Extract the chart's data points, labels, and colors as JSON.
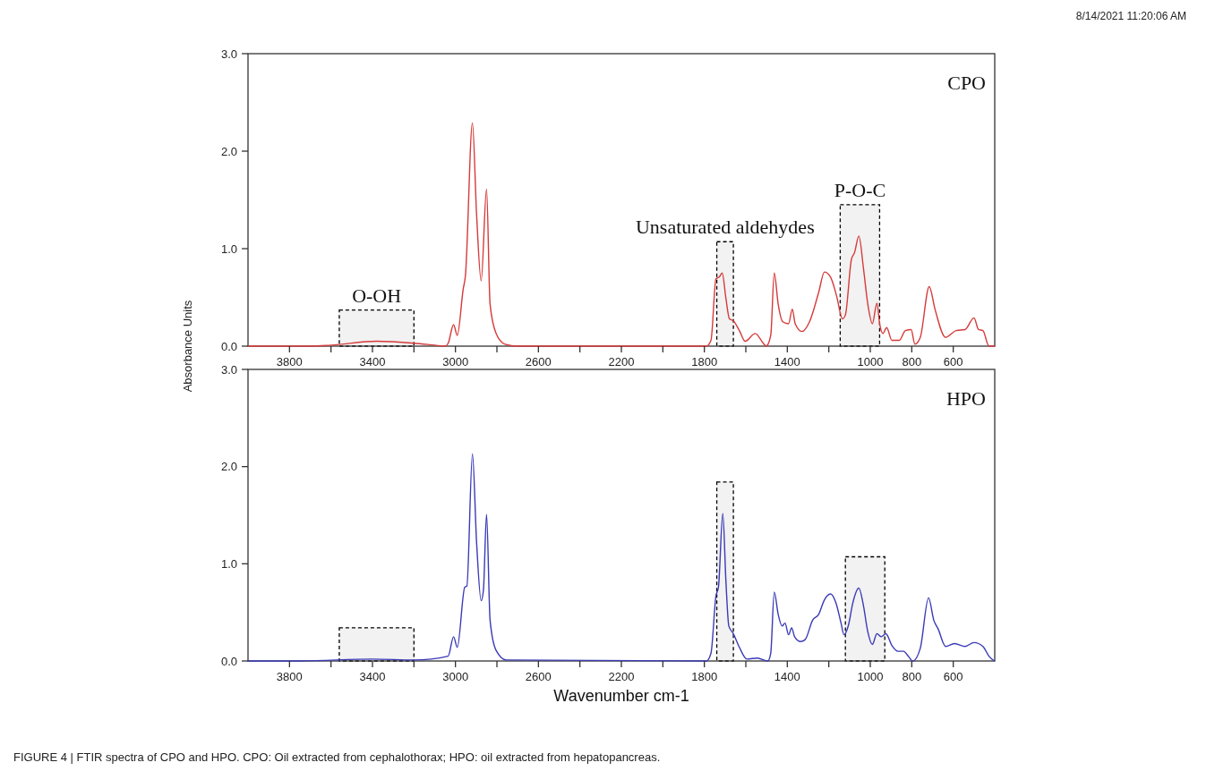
{
  "chart_data": [
    {
      "type": "line",
      "title": "CPO",
      "ylabel": "Absorbance Units",
      "annotations": [
        "8/14/2021 11:20:06 AM"
      ],
      "xlim": [
        4000,
        400
      ],
      "ylim": [
        0,
        3
      ],
      "xticks": [
        3800,
        {
          "value": 3600,
          "label": null
        },
        3400,
        {
          "value": 3200,
          "label": null
        },
        3000,
        {
          "value": 2800,
          "label": null
        },
        2600,
        {
          "value": 2400,
          "label": null
        },
        2200,
        {
          "value": 2000,
          "label": null
        },
        1800,
        {
          "value": 1600,
          "label": null
        },
        1400,
        {
          "value": 1200,
          "label": null
        },
        1000,
        800,
        600
      ],
      "yticks": [
        {
          "value": 0,
          "label": "0.0"
        },
        {
          "value": 1,
          "label": "1.0"
        },
        {
          "value": 2,
          "label": "2.0"
        },
        {
          "value": 3,
          "label": "3.0"
        }
      ],
      "grid": false,
      "bands": [
        {
          "axis": "x",
          "from": 3560,
          "to": 3200,
          "label": "O-OH",
          "color": "#000000"
        },
        {
          "axis": "x",
          "from": 1740,
          "to": 1660,
          "label": "Unsaturated aldehydes",
          "color": "#000000"
        },
        {
          "axis": "x",
          "from": 1145,
          "to": 955,
          "label": "P-O-C",
          "color": "#000000"
        }
      ],
      "series": [
        {
          "color": "#d63a3a",
          "x": [
            4000,
            3700,
            3600,
            3380,
            3200,
            3100,
            3050,
            3035,
            3009,
            2991,
            2963,
            2952,
            2918,
            2898,
            2876,
            2850,
            2833,
            2804,
            2761,
            2700,
            1800,
            1790,
            1768,
            1744,
            1728,
            1714,
            1696,
            1679,
            1660,
            1631,
            1603,
            1555,
            1516,
            1502,
            1480,
            1463,
            1444,
            1422,
            1394,
            1376,
            1362,
            1329,
            1293,
            1249,
            1221,
            1192,
            1163,
            1134,
            1120,
            1091,
            1076,
            1055,
            1033,
            1012,
            990,
            968,
            954,
            939,
            921,
            896,
            860,
            831,
            803,
            785,
            759,
            716,
            687,
            637,
            586,
            543,
            500,
            478,
            457,
            428,
            400
          ],
          "values": [
            0,
            0,
            0.01,
            0.05,
            0.03,
            0.01,
            0,
            0.03,
            0.22,
            0.11,
            0.58,
            0.72,
            2.29,
            1.35,
            0.67,
            1.61,
            0.43,
            0.13,
            0.02,
            0,
            0,
            0,
            0.06,
            0.69,
            0.71,
            0.75,
            0.49,
            0.28,
            0.26,
            0.16,
            0.05,
            0.13,
            0.03,
            0,
            0.11,
            0.75,
            0.43,
            0.25,
            0.23,
            0.38,
            0.23,
            0.15,
            0.25,
            0.55,
            0.76,
            0.71,
            0.52,
            0.28,
            0.32,
            0.89,
            0.96,
            1.13,
            0.8,
            0.43,
            0.23,
            0.44,
            0.22,
            0.13,
            0.19,
            0.06,
            0.06,
            0.16,
            0.17,
            0.02,
            0.09,
            0.61,
            0.37,
            0.09,
            0.16,
            0.17,
            0.29,
            0.17,
            0.16,
            0,
            0
          ]
        }
      ]
    },
    {
      "type": "line",
      "title": "HPO",
      "xlabel": "Wavenumber cm-1",
      "annotations": [
        "FIGURE 4 | FTIR spectra of CPO and HPO. CPO: Oil extracted from cephalothorax; HPO: oil extracted from hepatopancreas."
      ],
      "xlim": [
        4000,
        400
      ],
      "ylim": [
        0,
        3
      ],
      "xticks": [
        3800,
        {
          "value": 3600,
          "label": null
        },
        3400,
        {
          "value": 3200,
          "label": null
        },
        3000,
        {
          "value": 2800,
          "label": null
        },
        2600,
        {
          "value": 2400,
          "label": null
        },
        2200,
        {
          "value": 2000,
          "label": null
        },
        1800,
        {
          "value": 1600,
          "label": null
        },
        1400,
        {
          "value": 1200,
          "label": null
        },
        1000,
        800,
        600
      ],
      "yticks": [
        {
          "value": 0,
          "label": "0.0"
        },
        {
          "value": 1,
          "label": "1.0"
        },
        {
          "value": 2,
          "label": "2.0"
        },
        {
          "value": 3,
          "label": "3.0"
        }
      ],
      "grid": false,
      "bands": [
        {
          "axis": "x",
          "from": 3560,
          "to": 3200,
          "color": "#000000"
        },
        {
          "axis": "x",
          "from": 1740,
          "to": 1660,
          "color": "#000000"
        },
        {
          "axis": "x",
          "from": 1120,
          "to": 930,
          "color": "#000000"
        }
      ],
      "series": [
        {
          "color": "#3a3ab8",
          "x": [
            4000,
            3750,
            3400,
            3200,
            3035,
            3009,
            2991,
            2955,
            2945,
            2918,
            2898,
            2876,
            2865,
            2850,
            2833,
            2804,
            2754,
            1800,
            1790,
            1768,
            1744,
            1732,
            1711,
            1696,
            1682,
            1660,
            1631,
            1595,
            1545,
            1494,
            1480,
            1463,
            1444,
            1425,
            1411,
            1394,
            1379,
            1365,
            1336,
            1314,
            1278,
            1249,
            1221,
            1192,
            1166,
            1141,
            1127,
            1105,
            1084,
            1055,
            1033,
            1012,
            990,
            968,
            947,
            925,
            896,
            867,
            839,
            817,
            795,
            759,
            719,
            694,
            673,
            637,
            594,
            543,
            500,
            457,
            428,
            402
          ],
          "values": [
            0,
            0,
            0.02,
            0.01,
            0.05,
            0.25,
            0.14,
            0.76,
            0.77,
            2.13,
            1.22,
            0.62,
            0.73,
            1.51,
            0.42,
            0.11,
            0.01,
            0,
            0,
            0.08,
            0.67,
            0.76,
            1.52,
            0.82,
            0.36,
            0.28,
            0.14,
            0.02,
            0.03,
            0,
            0.08,
            0.71,
            0.48,
            0.36,
            0.39,
            0.27,
            0.34,
            0.25,
            0.2,
            0.22,
            0.42,
            0.48,
            0.63,
            0.69,
            0.6,
            0.39,
            0.27,
            0.37,
            0.6,
            0.75,
            0.57,
            0.3,
            0.17,
            0.28,
            0.25,
            0.28,
            0.16,
            0.1,
            0.1,
            0.05,
            0,
            0.13,
            0.65,
            0.42,
            0.33,
            0.15,
            0.18,
            0.15,
            0.19,
            0.15,
            0.05,
            0
          ]
        }
      ]
    }
  ]
}
